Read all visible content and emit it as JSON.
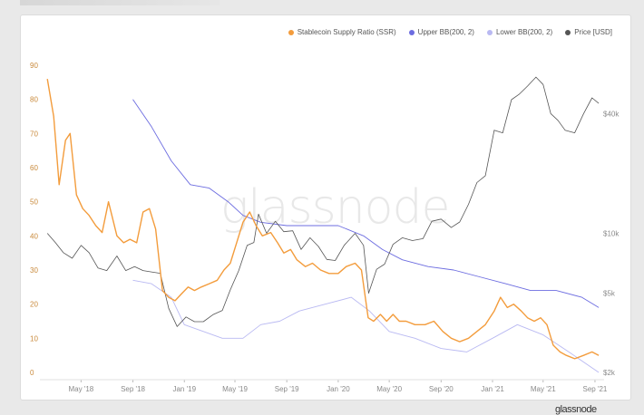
{
  "brand": {
    "watermark": "glassnode",
    "footer_logo": "glassnode"
  },
  "legend": [
    {
      "label": "Stablecoin Supply Ratio (SSR)",
      "color": "#f39c3c"
    },
    {
      "label": "Upper BB(200, 2)",
      "color": "#6c6ce0"
    },
    {
      "label": "Lower BB(200, 2)",
      "color": "#b9b9f2"
    },
    {
      "label": "Price [USD]",
      "color": "#555555"
    }
  ],
  "chart_data": {
    "type": "line",
    "x_ticks": [
      "May '18",
      "Sep '18",
      "Jan '19",
      "May '19",
      "Sep '19",
      "Jan '20",
      "May '20",
      "Sep '20",
      "Jan '21",
      "May '21",
      "Sep '21"
    ],
    "y_left": {
      "ticks": [
        "0",
        "10",
        "20",
        "30",
        "40",
        "50",
        "60",
        "70",
        "80",
        "90"
      ],
      "ylim": [
        0,
        90
      ]
    },
    "y_right": {
      "ticks": [
        "$2k",
        "$5k",
        "$10k",
        "$40k"
      ],
      "scale": "log"
    },
    "series": [
      {
        "name": "Stablecoin Supply Ratio (SSR)",
        "color": "#f39c3c",
        "axis": "left",
        "x": [
          "2018-02-10",
          "2018-02-25",
          "2018-03-10",
          "2018-03-25",
          "2018-04-05",
          "2018-04-20",
          "2018-05-05",
          "2018-05-20",
          "2018-06-05",
          "2018-06-20",
          "2018-07-05",
          "2018-07-25",
          "2018-08-10",
          "2018-08-25",
          "2018-09-10",
          "2018-09-25",
          "2018-10-10",
          "2018-10-25",
          "2018-11-10",
          "2018-11-25",
          "2018-12-10",
          "2018-12-25",
          "2019-01-10",
          "2019-01-25",
          "2019-02-10",
          "2019-03-01",
          "2019-03-20",
          "2019-04-05",
          "2019-04-20",
          "2019-05-05",
          "2019-05-20",
          "2019-06-05",
          "2019-06-20",
          "2019-07-05",
          "2019-07-25",
          "2019-08-10",
          "2019-08-25",
          "2019-09-10",
          "2019-09-25",
          "2019-10-15",
          "2019-11-01",
          "2019-11-20",
          "2019-12-10",
          "2020-01-01",
          "2020-01-20",
          "2020-02-10",
          "2020-02-25",
          "2020-03-12",
          "2020-03-25",
          "2020-04-10",
          "2020-04-25",
          "2020-05-10",
          "2020-05-25",
          "2020-06-10",
          "2020-07-01",
          "2020-07-25",
          "2020-08-15",
          "2020-09-05",
          "2020-09-25",
          "2020-10-15",
          "2020-11-05",
          "2020-11-25",
          "2020-12-15",
          "2021-01-05",
          "2021-01-20",
          "2021-02-05",
          "2021-02-20",
          "2021-03-10",
          "2021-03-25",
          "2021-04-10",
          "2021-04-25",
          "2021-05-10",
          "2021-05-25",
          "2021-06-10",
          "2021-06-25",
          "2021-07-15",
          "2021-08-05",
          "2021-08-25",
          "2021-09-10"
        ],
        "values": [
          86,
          75,
          55,
          68,
          70,
          52,
          48,
          46,
          43,
          41,
          50,
          40,
          38,
          39,
          38,
          47,
          48,
          42,
          24,
          22,
          21,
          23,
          25,
          24,
          25,
          26,
          27,
          30,
          32,
          38,
          44,
          47,
          43,
          40,
          41,
          38,
          35,
          36,
          33,
          31,
          32,
          30,
          29,
          29,
          31,
          32,
          30,
          16,
          15,
          17,
          15,
          17,
          15,
          15,
          14,
          14,
          15,
          12,
          10,
          9,
          10,
          12,
          14,
          18,
          22,
          19,
          20,
          18,
          16,
          15,
          16,
          14,
          8,
          6,
          5,
          4,
          5,
          6,
          5
        ]
      },
      {
        "name": "Upper BB(200, 2)",
        "color": "#6c6ce0",
        "axis": "left",
        "x": [
          "2018-09-01",
          "2018-10-15",
          "2018-12-01",
          "2019-01-15",
          "2019-03-01",
          "2019-04-15",
          "2019-05-20",
          "2019-07-01",
          "2019-09-01",
          "2019-11-01",
          "2020-01-01",
          "2020-03-01",
          "2020-04-15",
          "2020-06-01",
          "2020-08-01",
          "2020-10-01",
          "2020-12-01",
          "2021-02-01",
          "2021-04-01",
          "2021-06-01",
          "2021-08-01",
          "2021-09-10"
        ],
        "values": [
          80,
          72,
          62,
          55,
          54,
          50,
          46,
          44,
          43,
          43,
          43,
          40,
          36,
          33,
          31,
          30,
          28,
          26,
          24,
          24,
          22,
          19
        ]
      },
      {
        "name": "Lower BB(200, 2)",
        "color": "#b9b9f2",
        "axis": "left",
        "x": [
          "2018-09-01",
          "2018-10-15",
          "2018-12-01",
          "2019-01-01",
          "2019-02-15",
          "2019-04-01",
          "2019-05-20",
          "2019-07-01",
          "2019-08-15",
          "2019-10-01",
          "2019-12-01",
          "2020-02-01",
          "2020-03-15",
          "2020-05-01",
          "2020-07-01",
          "2020-09-01",
          "2020-11-01",
          "2021-01-01",
          "2021-03-01",
          "2021-05-01",
          "2021-07-01",
          "2021-09-10"
        ],
        "values": [
          27,
          26,
          22,
          14,
          12,
          10,
          10,
          14,
          15,
          18,
          20,
          22,
          18,
          12,
          10,
          7,
          6,
          10,
          14,
          11,
          6,
          0
        ]
      },
      {
        "name": "Price [USD]",
        "color": "#555555",
        "axis": "right",
        "x": [
          "2018-02-10",
          "2018-03-01",
          "2018-03-20",
          "2018-04-10",
          "2018-05-01",
          "2018-05-20",
          "2018-06-10",
          "2018-07-01",
          "2018-07-25",
          "2018-08-15",
          "2018-09-05",
          "2018-09-25",
          "2018-10-15",
          "2018-11-05",
          "2018-11-25",
          "2018-12-15",
          "2019-01-05",
          "2019-01-25",
          "2019-02-15",
          "2019-03-10",
          "2019-04-01",
          "2019-04-20",
          "2019-05-10",
          "2019-05-30",
          "2019-06-15",
          "2019-06-26",
          "2019-07-15",
          "2019-08-05",
          "2019-08-25",
          "2019-09-15",
          "2019-10-05",
          "2019-10-26",
          "2019-11-15",
          "2019-12-05",
          "2019-12-25",
          "2020-01-15",
          "2020-02-10",
          "2020-03-01",
          "2020-03-13",
          "2020-04-01",
          "2020-04-20",
          "2020-05-10",
          "2020-06-01",
          "2020-06-25",
          "2020-07-20",
          "2020-08-10",
          "2020-09-01",
          "2020-09-25",
          "2020-10-15",
          "2020-11-05",
          "2020-11-25",
          "2020-12-15",
          "2021-01-05",
          "2021-01-25",
          "2021-02-15",
          "2021-03-05",
          "2021-03-25",
          "2021-04-14",
          "2021-05-01",
          "2021-05-19",
          "2021-06-05",
          "2021-06-22",
          "2021-07-15",
          "2021-08-05",
          "2021-08-25",
          "2021-09-10"
        ],
        "values": [
          10000,
          9000,
          8000,
          7500,
          8700,
          8000,
          6700,
          6500,
          7700,
          6500,
          6800,
          6500,
          6400,
          6300,
          4200,
          3400,
          3800,
          3600,
          3600,
          3900,
          4100,
          5200,
          6500,
          8700,
          9000,
          12500,
          10000,
          11500,
          10200,
          10300,
          8300,
          9500,
          8600,
          7400,
          7300,
          8700,
          10000,
          8700,
          5000,
          6600,
          7000,
          8800,
          9500,
          9200,
          9400,
          11500,
          11800,
          10700,
          11400,
          14000,
          18000,
          19500,
          33000,
          32000,
          47000,
          50000,
          55000,
          61000,
          56000,
          40000,
          37000,
          33000,
          32000,
          40000,
          48000,
          45000
        ]
      }
    ],
    "grid": false,
    "legend_position": "top-right"
  }
}
